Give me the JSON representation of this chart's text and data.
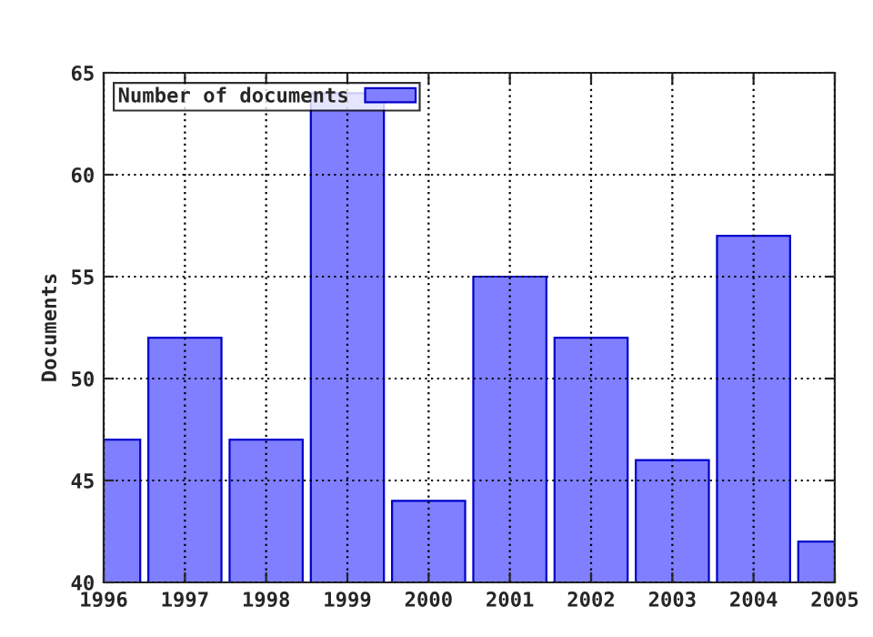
{
  "chart_data": {
    "type": "bar",
    "ylabel": "Documents",
    "x": [
      1996,
      1997,
      1998,
      1999,
      2000,
      2001,
      2002,
      2003,
      2004,
      2005
    ],
    "series": [
      {
        "name": "Number of documents",
        "color": "#7f7fff",
        "values": [
          47,
          52,
          47,
          64,
          44,
          55,
          52,
          46,
          57,
          42
        ]
      }
    ],
    "xlim": [
      1996,
      2005
    ],
    "xticks": [
      1996,
      1997,
      1998,
      1999,
      2000,
      2001,
      2002,
      2003,
      2004,
      2005
    ],
    "ylim": [
      40,
      65
    ],
    "yticks": [
      40,
      45,
      50,
      55,
      60,
      65
    ],
    "grid": true,
    "legend": "top left"
  }
}
